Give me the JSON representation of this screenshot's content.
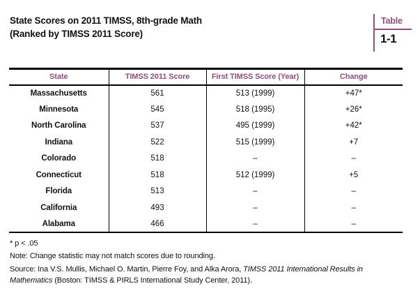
{
  "colors": {
    "accent": "#8e4f7c",
    "text": "#111111",
    "rule": "#000000"
  },
  "title": {
    "line1": "State Scores on 2011 TIMSS, 8th-grade Math",
    "line2": "(Ranked by TIMSS 2011 Score)"
  },
  "table_tag": {
    "word": "Table",
    "number": "1-1"
  },
  "chart_data": {
    "type": "table",
    "columns": [
      "State",
      "TIMSS 2011 Score",
      "First TIMSS Score (Year)",
      "Change"
    ],
    "rows": [
      [
        "Massachusetts",
        "561",
        "513 (1999)",
        "+47*"
      ],
      [
        "Minnesota",
        "545",
        "518 (1995)",
        "+26*"
      ],
      [
        "North Carolina",
        "537",
        "495 (1999)",
        "+42*"
      ],
      [
        "Indiana",
        "522",
        "515 (1999)",
        "+7"
      ],
      [
        "Colorado",
        "518",
        "–",
        "–"
      ],
      [
        "Connecticut",
        "518",
        "512 (1999)",
        "+5"
      ],
      [
        "Florida",
        "513",
        "–",
        "–"
      ],
      [
        "California",
        "493",
        "–",
        "–"
      ],
      [
        "Alabama",
        "466",
        "–",
        "–"
      ]
    ]
  },
  "footnotes": {
    "significance": "* p < .05",
    "note": "Note: Change statistic may not match scores due to rounding.",
    "source_prefix": "Source: Ina V.S. Mullis, Michael O. Martin, Pierre Foy, and Alka Arora,  ",
    "source_italic": "TIMSS 2011 International Results in Mathematics",
    "source_suffix": "  (Boston: TIMSS & PIRLS International Study Center, 2011)."
  }
}
